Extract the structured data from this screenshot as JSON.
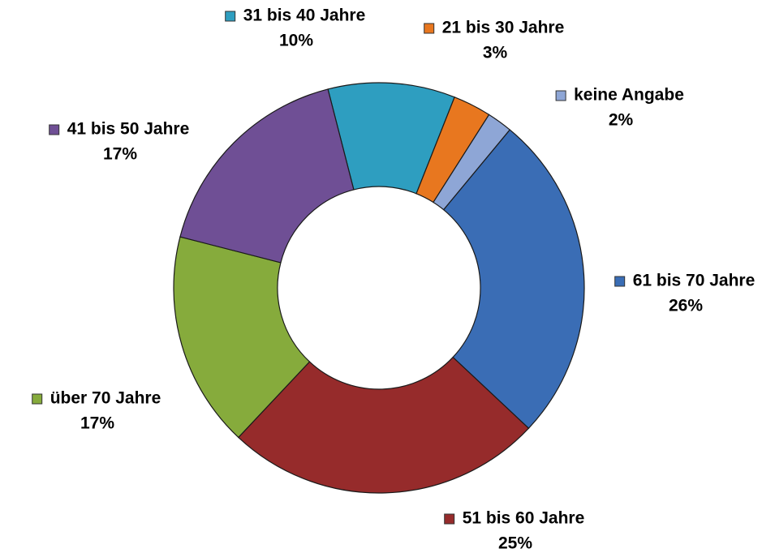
{
  "chart_data": {
    "type": "donut",
    "categories": [
      "31 bis 40 Jahre",
      "21 bis 30 Jahre",
      "keine Angabe",
      "61 bis 70 Jahre",
      "51 bis 60 Jahre",
      "über 70 Jahre",
      "41 bis 50 Jahre"
    ],
    "values": [
      10,
      3,
      2,
      26,
      25,
      17,
      17
    ],
    "value_labels": [
      "10%",
      "3%",
      "2%",
      "26%",
      "25%",
      "17%",
      "17%"
    ],
    "colors": [
      "#2e9ec0",
      "#e8771f",
      "#8ea6d6",
      "#3a6db5",
      "#962b2b",
      "#86ab3c",
      "#6f4f95"
    ]
  }
}
